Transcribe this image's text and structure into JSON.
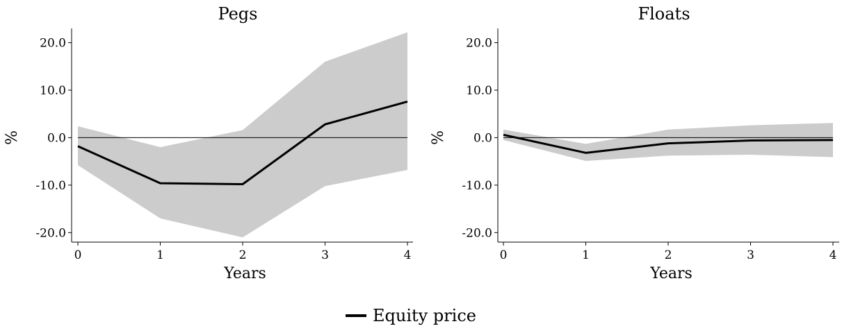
{
  "chart_data": [
    {
      "type": "line",
      "title": "Pegs",
      "xlabel": "Years",
      "ylabel": "%",
      "x": [
        0,
        1,
        2,
        3,
        4
      ],
      "xticks": [
        "0",
        "1",
        "2",
        "3",
        "4"
      ],
      "ylim": [
        -22,
        23
      ],
      "yticks": [
        -20,
        -10,
        0,
        10,
        20
      ],
      "ytick_labels": [
        "-20.0",
        "-10.0",
        "0.0",
        "10.0",
        "20.0"
      ],
      "zero_line": true,
      "series": [
        {
          "name": "Equity price",
          "values": [
            -1.8,
            -9.6,
            -9.8,
            2.8,
            7.6
          ],
          "lower": [
            -5.8,
            -17.0,
            -21.0,
            -10.2,
            -6.8
          ],
          "upper": [
            2.4,
            -2.0,
            1.6,
            16.0,
            22.2
          ]
        }
      ]
    },
    {
      "type": "line",
      "title": "Floats",
      "xlabel": "Years",
      "ylabel": "%",
      "x": [
        0,
        1,
        2,
        3,
        4
      ],
      "xticks": [
        "0",
        "1",
        "2",
        "3",
        "4"
      ],
      "ylim": [
        -22,
        23
      ],
      "yticks": [
        -20,
        -10,
        0,
        10,
        20
      ],
      "ytick_labels": [
        "-20.0",
        "-10.0",
        "0.0",
        "10.0",
        "20.0"
      ],
      "zero_line": true,
      "series": [
        {
          "name": "Equity price",
          "values": [
            0.6,
            -3.2,
            -1.2,
            -0.6,
            -0.5
          ],
          "lower": [
            -0.5,
            -4.9,
            -3.8,
            -3.6,
            -4.1
          ],
          "upper": [
            1.7,
            -1.3,
            1.7,
            2.6,
            3.1
          ]
        }
      ]
    }
  ],
  "legend": {
    "label": "Equity price",
    "position": "bottom-center"
  },
  "colors": {
    "line": "#000000",
    "band": "#cccccc",
    "zero_line": "#000000",
    "axis": "#000000"
  }
}
